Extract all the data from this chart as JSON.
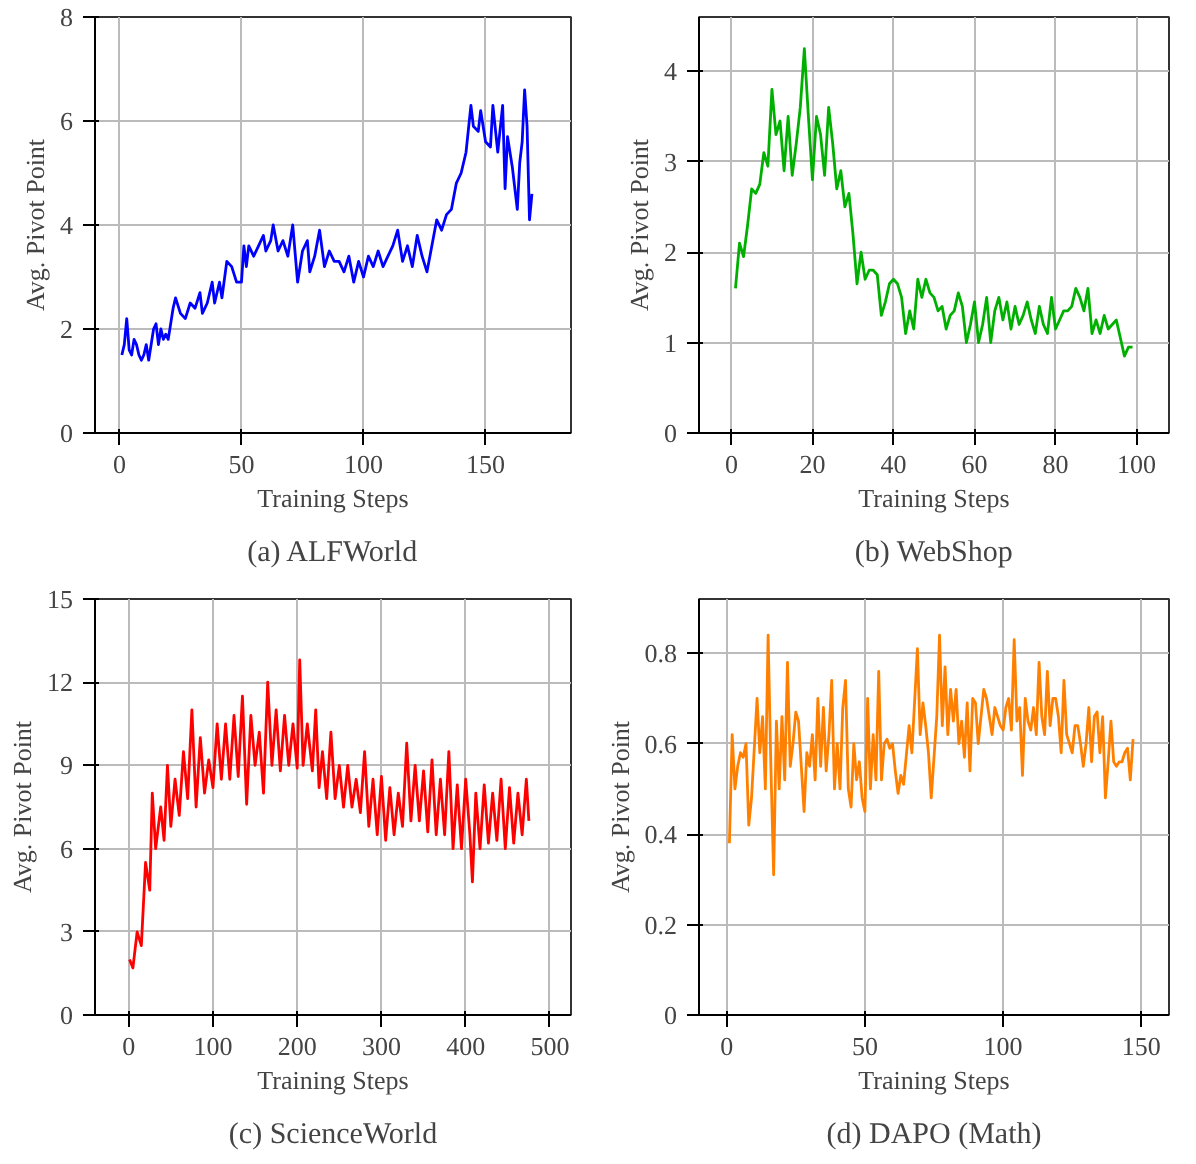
{
  "chart_data": [
    {
      "type": "line",
      "title": "(a) ALFWorld",
      "xlabel": "Training Steps",
      "ylabel": "Avg. Pivot Point",
      "xlim": [
        -10,
        185
      ],
      "ylim": [
        0,
        8
      ],
      "xticks": [
        0,
        50,
        100,
        150
      ],
      "yticks": [
        0,
        2,
        4,
        6,
        8
      ],
      "grid": true,
      "series": [
        {
          "color": "#0000ff",
          "x": [
            1,
            2,
            3,
            4,
            5,
            6,
            7,
            8,
            9,
            10,
            11,
            12,
            14,
            15,
            16,
            17,
            18,
            19,
            20,
            22,
            23,
            25,
            27,
            29,
            31,
            33,
            34,
            36,
            38,
            39,
            41,
            42,
            44,
            46,
            48,
            50,
            51,
            52,
            53,
            55,
            57,
            59,
            60,
            62,
            63,
            65,
            67,
            69,
            71,
            73,
            75,
            77,
            78,
            80,
            82,
            84,
            86,
            88,
            90,
            92,
            94,
            96,
            98,
            100,
            102,
            104,
            106,
            108,
            110,
            112,
            114,
            116,
            118,
            120,
            122,
            124,
            126,
            128,
            130,
            132,
            134,
            136,
            138,
            140,
            142,
            144,
            145,
            147,
            148,
            150,
            152,
            153,
            155,
            157,
            158,
            159,
            161,
            163,
            164,
            165,
            166,
            167,
            168,
            169
          ],
          "values": [
            1.5,
            1.7,
            2.2,
            1.6,
            1.5,
            1.8,
            1.7,
            1.5,
            1.4,
            1.5,
            1.7,
            1.4,
            2.0,
            2.1,
            1.7,
            2.0,
            1.8,
            1.9,
            1.8,
            2.4,
            2.6,
            2.3,
            2.2,
            2.5,
            2.4,
            2.7,
            2.3,
            2.5,
            2.9,
            2.5,
            2.9,
            2.6,
            3.3,
            3.2,
            2.9,
            2.9,
            3.6,
            3.2,
            3.6,
            3.4,
            3.6,
            3.8,
            3.5,
            3.7,
            4.0,
            3.5,
            3.7,
            3.4,
            4.0,
            2.9,
            3.5,
            3.7,
            3.1,
            3.4,
            3.9,
            3.2,
            3.5,
            3.3,
            3.3,
            3.1,
            3.4,
            2.9,
            3.3,
            3.0,
            3.4,
            3.2,
            3.5,
            3.2,
            3.4,
            3.6,
            3.9,
            3.3,
            3.6,
            3.2,
            3.8,
            3.4,
            3.1,
            3.6,
            4.1,
            3.9,
            4.2,
            4.3,
            4.8,
            5.0,
            5.4,
            6.3,
            5.9,
            5.8,
            6.2,
            5.6,
            5.5,
            6.3,
            5.4,
            6.3,
            4.7,
            5.7,
            5.1,
            4.3,
            5.2,
            5.6,
            6.6,
            5.9,
            4.1,
            4.6
          ]
        }
      ]
    },
    {
      "type": "line",
      "title": "(b) WebShop",
      "xlabel": "Training Steps",
      "ylabel": "Avg. Pivot Point",
      "xlim": [
        -8,
        108
      ],
      "ylim": [
        0,
        4.6
      ],
      "xticks": [
        0,
        20,
        40,
        60,
        80,
        100
      ],
      "yticks": [
        0,
        1,
        2,
        3,
        4
      ],
      "grid": true,
      "series": [
        {
          "color": "#00b000",
          "x": [
            1,
            2,
            3,
            4,
            5,
            6,
            7,
            8,
            9,
            10,
            11,
            12,
            13,
            14,
            15,
            16,
            17,
            18,
            19,
            20,
            21,
            22,
            23,
            24,
            25,
            26,
            27,
            28,
            29,
            30,
            31,
            32,
            33,
            34,
            35,
            36,
            37,
            38,
            39,
            40,
            41,
            42,
            43,
            44,
            45,
            46,
            47,
            48,
            49,
            50,
            51,
            52,
            53,
            54,
            55,
            56,
            57,
            58,
            59,
            60,
            61,
            62,
            63,
            64,
            65,
            66,
            67,
            68,
            69,
            70,
            71,
            72,
            73,
            74,
            75,
            76,
            77,
            78,
            79,
            80,
            81,
            82,
            83,
            84,
            85,
            86,
            87,
            88,
            89,
            90,
            91,
            92,
            93,
            94,
            95,
            96,
            97,
            98,
            99
          ],
          "values": [
            1.6,
            2.1,
            1.95,
            2.3,
            2.7,
            2.65,
            2.75,
            3.1,
            2.95,
            3.8,
            3.3,
            3.45,
            2.9,
            3.5,
            2.85,
            3.2,
            3.6,
            4.25,
            3.5,
            2.8,
            3.5,
            3.3,
            2.85,
            3.6,
            3.2,
            2.7,
            2.9,
            2.5,
            2.65,
            2.2,
            1.65,
            2.0,
            1.7,
            1.8,
            1.8,
            1.75,
            1.3,
            1.45,
            1.65,
            1.7,
            1.65,
            1.5,
            1.1,
            1.35,
            1.15,
            1.7,
            1.5,
            1.7,
            1.55,
            1.5,
            1.35,
            1.4,
            1.15,
            1.3,
            1.35,
            1.55,
            1.4,
            1.0,
            1.2,
            1.45,
            1.0,
            1.2,
            1.5,
            1.0,
            1.35,
            1.5,
            1.25,
            1.45,
            1.15,
            1.4,
            1.2,
            1.3,
            1.45,
            1.25,
            1.1,
            1.4,
            1.2,
            1.1,
            1.5,
            1.15,
            1.25,
            1.35,
            1.35,
            1.4,
            1.6,
            1.5,
            1.35,
            1.6,
            1.1,
            1.25,
            1.1,
            1.3,
            1.15,
            1.2,
            1.25,
            1.05,
            0.85,
            0.95,
            0.95
          ]
        }
      ]
    },
    {
      "type": "line",
      "title": "(c) ScienceWorld",
      "xlabel": "Training Steps",
      "ylabel": "Avg. Pivot Point",
      "xlim": [
        -40,
        525
      ],
      "ylim": [
        0,
        15
      ],
      "xticks": [
        0,
        100,
        200,
        300,
        400,
        500
      ],
      "yticks": [
        0,
        3,
        6,
        9,
        12,
        15
      ],
      "grid": true,
      "series": [
        {
          "color": "#ff0000",
          "x": [
            1,
            5,
            10,
            15,
            20,
            25,
            28,
            32,
            38,
            42,
            46,
            50,
            55,
            60,
            65,
            70,
            75,
            80,
            85,
            90,
            95,
            100,
            105,
            110,
            115,
            120,
            125,
            130,
            135,
            140,
            145,
            150,
            155,
            160,
            165,
            170,
            175,
            180,
            185,
            190,
            195,
            200,
            203,
            207,
            212,
            218,
            222,
            226,
            230,
            235,
            240,
            245,
            250,
            255,
            260,
            265,
            270,
            275,
            280,
            285,
            290,
            295,
            300,
            305,
            310,
            315,
            320,
            325,
            330,
            335,
            340,
            345,
            350,
            355,
            360,
            365,
            370,
            375,
            380,
            385,
            390,
            395,
            400,
            405,
            408,
            412,
            417,
            422,
            427,
            432,
            437,
            442,
            447,
            452,
            457,
            462,
            467,
            472,
            475
          ],
          "values": [
            2.0,
            1.7,
            3.0,
            2.5,
            5.5,
            4.5,
            8.0,
            6.0,
            7.5,
            6.3,
            9.0,
            6.8,
            8.5,
            7.2,
            9.5,
            7.8,
            11.0,
            7.5,
            10.0,
            8.0,
            9.2,
            8.2,
            10.5,
            8.5,
            10.5,
            8.5,
            10.8,
            8.6,
            11.5,
            7.6,
            10.8,
            9.0,
            10.2,
            8.0,
            12.0,
            9.0,
            11.0,
            8.8,
            10.8,
            9.0,
            10.5,
            8.9,
            12.8,
            9.0,
            10.5,
            8.8,
            11.0,
            8.2,
            9.5,
            7.8,
            10.2,
            7.8,
            9.0,
            7.5,
            9.0,
            7.5,
            8.5,
            7.3,
            9.5,
            6.8,
            8.5,
            6.5,
            8.6,
            6.3,
            8.2,
            6.5,
            8.0,
            6.8,
            9.8,
            7.0,
            9.0,
            7.0,
            8.8,
            6.6,
            9.2,
            6.5,
            8.5,
            6.5,
            9.5,
            6.0,
            8.3,
            6.0,
            8.5,
            6.5,
            4.8,
            8.0,
            6.0,
            8.3,
            6.2,
            8.0,
            6.3,
            8.5,
            6.0,
            8.2,
            6.2,
            8.0,
            6.5,
            8.5,
            7.0
          ]
        }
      ]
    },
    {
      "type": "line",
      "title": "(d) DAPO (Math)",
      "xlabel": "Training Steps",
      "ylabel": "Avg. Pivot Point",
      "xlim": [
        -10,
        160
      ],
      "ylim": [
        0,
        0.92
      ],
      "xticks": [
        0,
        50,
        100,
        150
      ],
      "yticks": [
        0,
        0.2,
        0.4,
        0.6,
        0.8
      ],
      "grid": true,
      "series": [
        {
          "color": "#ff8000",
          "x": [
            1,
            2,
            3,
            4,
            5,
            6,
            7,
            8,
            9,
            11,
            12,
            13,
            14,
            15,
            16,
            17,
            18,
            19,
            20,
            21,
            22,
            23,
            24,
            25,
            26,
            28,
            29,
            30,
            31,
            32,
            33,
            34,
            35,
            36,
            37,
            38,
            39,
            40,
            41,
            42,
            43,
            44,
            45,
            46,
            47,
            48,
            49,
            50,
            51,
            52,
            53,
            54,
            55,
            56,
            57,
            58,
            59,
            60,
            61,
            62,
            63,
            64,
            66,
            67,
            69,
            70,
            71,
            72,
            73,
            74,
            76,
            77,
            78,
            79,
            80,
            81,
            82,
            83,
            84,
            85,
            86,
            87,
            88,
            89,
            90,
            91,
            92,
            93,
            94,
            95,
            96,
            97,
            98,
            99,
            100,
            101,
            102,
            103,
            104,
            105,
            106,
            107,
            108,
            109,
            110,
            111,
            112,
            113,
            114,
            115,
            116,
            117,
            118,
            119,
            120,
            121,
            122,
            123,
            124,
            125,
            126,
            127,
            128,
            129,
            130,
            131,
            132,
            133,
            134,
            135,
            136,
            137,
            138,
            139,
            140,
            141,
            142,
            143,
            144,
            145,
            146,
            147
          ],
          "values": [
            0.38,
            0.62,
            0.5,
            0.55,
            0.58,
            0.57,
            0.6,
            0.42,
            0.48,
            0.7,
            0.58,
            0.66,
            0.5,
            0.84,
            0.55,
            0.31,
            0.65,
            0.5,
            0.66,
            0.52,
            0.78,
            0.55,
            0.6,
            0.67,
            0.65,
            0.45,
            0.58,
            0.55,
            0.62,
            0.52,
            0.7,
            0.55,
            0.68,
            0.54,
            0.62,
            0.74,
            0.5,
            0.6,
            0.5,
            0.68,
            0.74,
            0.5,
            0.46,
            0.6,
            0.52,
            0.56,
            0.48,
            0.45,
            0.7,
            0.5,
            0.62,
            0.52,
            0.76,
            0.52,
            0.6,
            0.61,
            0.59,
            0.6,
            0.54,
            0.49,
            0.53,
            0.51,
            0.64,
            0.58,
            0.81,
            0.62,
            0.69,
            0.64,
            0.58,
            0.48,
            0.66,
            0.84,
            0.64,
            0.77,
            0.62,
            0.72,
            0.65,
            0.72,
            0.6,
            0.65,
            0.57,
            0.69,
            0.54,
            0.7,
            0.69,
            0.6,
            0.66,
            0.72,
            0.7,
            0.66,
            0.62,
            0.68,
            0.66,
            0.64,
            0.63,
            0.68,
            0.7,
            0.63,
            0.83,
            0.65,
            0.68,
            0.53,
            0.7,
            0.65,
            0.63,
            0.68,
            0.62,
            0.78,
            0.66,
            0.62,
            0.76,
            0.64,
            0.7,
            0.7,
            0.66,
            0.58,
            0.74,
            0.62,
            0.6,
            0.58,
            0.64,
            0.64,
            0.6,
            0.55,
            0.6,
            0.68,
            0.56,
            0.66,
            0.67,
            0.58,
            0.66,
            0.48,
            0.56,
            0.65,
            0.56,
            0.55,
            0.56,
            0.56,
            0.58,
            0.59,
            0.52,
            0.61
          ]
        }
      ]
    }
  ]
}
